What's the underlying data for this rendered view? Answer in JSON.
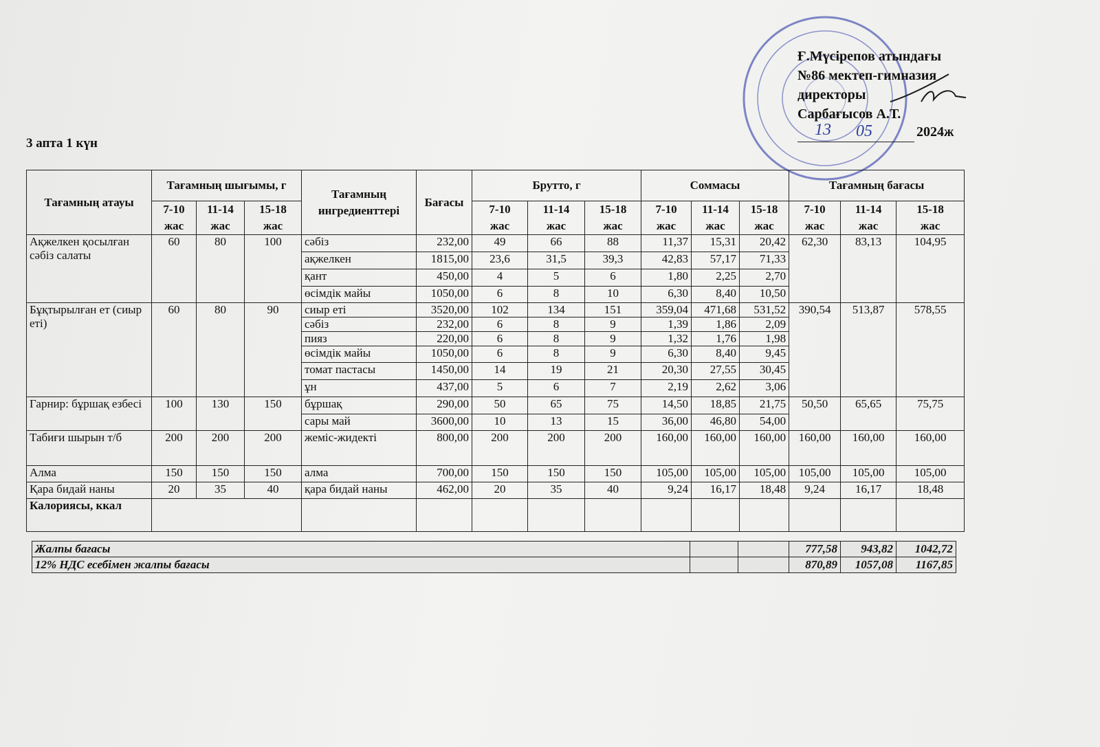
{
  "approval": {
    "lines": [
      "Ғ.Мүсірепов атындағы",
      "№86 мектеп-гимназия",
      "директоры",
      "Сарбағысов А.Т."
    ],
    "date_day": "13",
    "date_month": "05",
    "year": "2024ж"
  },
  "day_title": "3 апта 1 күн",
  "table": {
    "headers": {
      "dish": "Тағамның атауы",
      "yield": "Тағамның шығымы, г",
      "ingredients": "Тағамның ингредиенттері",
      "price": "Бағасы",
      "brutto": "Брутто, г",
      "sum": "Соммасы",
      "dish_price": "Тағамның бағасы",
      "ages": [
        "7-10",
        "11-14",
        "15-18"
      ],
      "age_unit": "жас"
    },
    "dishes": [
      {
        "name": "Ақжелкен қосылған сәбіз салаты",
        "yield": [
          "60",
          "80",
          "100"
        ],
        "ingredients": [
          {
            "name": "сәбіз",
            "price": "232,00",
            "brutto": [
              "49",
              "66",
              "88"
            ],
            "sum": [
              "11,37",
              "15,31",
              "20,42"
            ]
          },
          {
            "name": "ақжелкен",
            "price": "1815,00",
            "brutto": [
              "23,6",
              "31,5",
              "39,3"
            ],
            "sum": [
              "42,83",
              "57,17",
              "71,33"
            ]
          },
          {
            "name": "қант",
            "price": "450,00",
            "brutto": [
              "4",
              "5",
              "6"
            ],
            "sum": [
              "1,80",
              "2,25",
              "2,70"
            ]
          },
          {
            "name": "өсімдік майы",
            "price": "1050,00",
            "brutto": [
              "6",
              "8",
              "10"
            ],
            "sum": [
              "6,30",
              "8,40",
              "10,50"
            ]
          }
        ],
        "total": [
          "62,30",
          "83,13",
          "104,95"
        ]
      },
      {
        "name": "Бұқтырылған ет (сиыр еті)",
        "yield": [
          "60",
          "80",
          "90"
        ],
        "ingredients": [
          {
            "name": "сиыр еті",
            "price": "3520,00",
            "brutto": [
              "102",
              "134",
              "151"
            ],
            "sum": [
              "359,04",
              "471,68",
              "531,52"
            ]
          },
          {
            "name": "сәбіз",
            "price": "232,00",
            "brutto": [
              "6",
              "8",
              "9"
            ],
            "sum": [
              "1,39",
              "1,86",
              "2,09"
            ]
          },
          {
            "name": "пияз",
            "price": "220,00",
            "brutto": [
              "6",
              "8",
              "9"
            ],
            "sum": [
              "1,32",
              "1,76",
              "1,98"
            ]
          },
          {
            "name": "өсімдік майы",
            "price": "1050,00",
            "brutto": [
              "6",
              "8",
              "9"
            ],
            "sum": [
              "6,30",
              "8,40",
              "9,45"
            ]
          },
          {
            "name": "томат пастасы",
            "price": "1450,00",
            "brutto": [
              "14",
              "19",
              "21"
            ],
            "sum": [
              "20,30",
              "27,55",
              "30,45"
            ]
          },
          {
            "name": "ұн",
            "price": "437,00",
            "brutto": [
              "5",
              "6",
              "7"
            ],
            "sum": [
              "2,19",
              "2,62",
              "3,06"
            ]
          }
        ],
        "total": [
          "390,54",
          "513,87",
          "578,55"
        ]
      },
      {
        "name": "Гарнир: бұршақ езбесі",
        "yield": [
          "100",
          "130",
          "150"
        ],
        "ingredients": [
          {
            "name": "бұршақ",
            "price": "290,00",
            "brutto": [
              "50",
              "65",
              "75"
            ],
            "sum": [
              "14,50",
              "18,85",
              "21,75"
            ]
          },
          {
            "name": "сары май",
            "price": "3600,00",
            "brutto": [
              "10",
              "13",
              "15"
            ],
            "sum": [
              "36,00",
              "46,80",
              "54,00"
            ]
          }
        ],
        "total": [
          "50,50",
          "65,65",
          "75,75"
        ]
      },
      {
        "name": "Табиғи шырын т/б",
        "yield": [
          "200",
          "200",
          "200"
        ],
        "ingredients": [
          {
            "name": "жеміс-жидекті",
            "price": "800,00",
            "brutto": [
              "200",
              "200",
              "200"
            ],
            "sum": [
              "160,00",
              "160,00",
              "160,00"
            ]
          }
        ],
        "total": [
          "160,00",
          "160,00",
          "160,00"
        ]
      },
      {
        "name": "Алма",
        "yield": [
          "150",
          "150",
          "150"
        ],
        "ingredients": [
          {
            "name": "алма",
            "price": "700,00",
            "brutto": [
              "150",
              "150",
              "150"
            ],
            "sum": [
              "105,00",
              "105,00",
              "105,00"
            ]
          }
        ],
        "total": [
          "105,00",
          "105,00",
          "105,00"
        ]
      },
      {
        "name": "Қара бидай наны",
        "yield": [
          "20",
          "35",
          "40"
        ],
        "ingredients": [
          {
            "name": "қара бидай наны",
            "price": "462,00",
            "brutto": [
              "20",
              "35",
              "40"
            ],
            "sum": [
              "9,24",
              "16,17",
              "18,48"
            ]
          }
        ],
        "total": [
          "9,24",
          "16,17",
          "18,48"
        ]
      }
    ],
    "calories_label": "Калориясы, ккал"
  },
  "summary": [
    {
      "label": "Жалпы бағасы",
      "values": [
        "777,58",
        "943,82",
        "1042,72"
      ]
    },
    {
      "label": "12% НДС есебімен жалпы бағасы",
      "values": [
        "870,89",
        "1057,08",
        "1167,85"
      ]
    }
  ]
}
